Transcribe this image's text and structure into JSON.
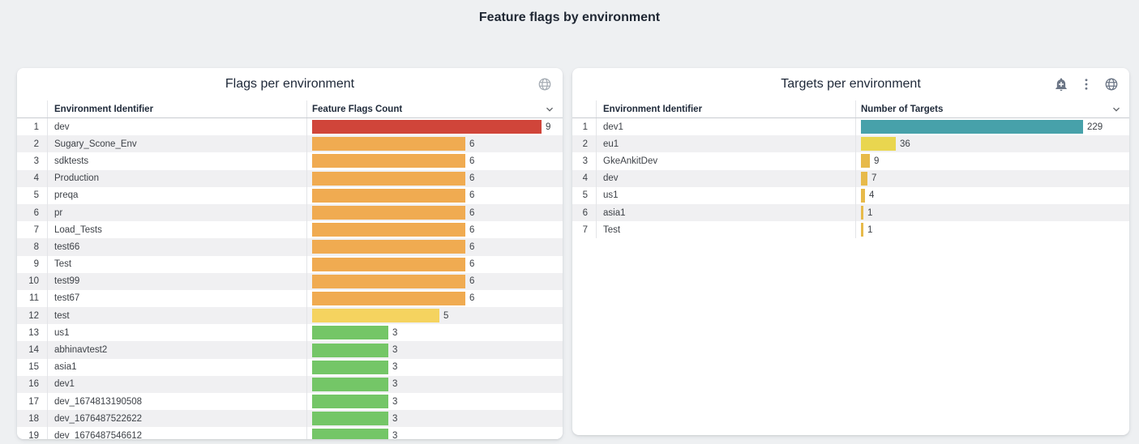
{
  "page_title": "Feature flags by environment",
  "colors": {
    "page_background": "#eef0f2",
    "panel_background": "#ffffff",
    "row_stripe": "#f0f0f2",
    "bar_red": "#d0453a",
    "bar_orange": "#f0ab51",
    "bar_yellow": "#f5d35f",
    "bar_green": "#74c667",
    "bar_teal": "#47a1aa",
    "bar_bright_yellow": "#e9d64f",
    "bar_amber": "#e7ba4a"
  },
  "panels": [
    {
      "title": "Flags per environment",
      "columns": [
        "Environment Identifier",
        "Feature Flags Count"
      ],
      "header_icons": [
        "globe-icon"
      ],
      "rows": [
        {
          "n": 1,
          "id": "dev",
          "value": 9,
          "color": "#d0453a"
        },
        {
          "n": 2,
          "id": "Sugary_Scone_Env",
          "value": 6,
          "color": "#f0ab51"
        },
        {
          "n": 3,
          "id": "sdktests",
          "value": 6,
          "color": "#f0ab51"
        },
        {
          "n": 4,
          "id": "Production",
          "value": 6,
          "color": "#f0ab51"
        },
        {
          "n": 5,
          "id": "preqa",
          "value": 6,
          "color": "#f0ab51"
        },
        {
          "n": 6,
          "id": "pr",
          "value": 6,
          "color": "#f0ab51"
        },
        {
          "n": 7,
          "id": "Load_Tests",
          "value": 6,
          "color": "#f0ab51"
        },
        {
          "n": 8,
          "id": "test66",
          "value": 6,
          "color": "#f0ab51"
        },
        {
          "n": 9,
          "id": "Test",
          "value": 6,
          "color": "#f0ab51"
        },
        {
          "n": 10,
          "id": "test99",
          "value": 6,
          "color": "#f0ab51"
        },
        {
          "n": 11,
          "id": "test67",
          "value": 6,
          "color": "#f0ab51"
        },
        {
          "n": 12,
          "id": "test",
          "value": 5,
          "color": "#f5d35f"
        },
        {
          "n": 13,
          "id": "us1",
          "value": 3,
          "color": "#74c667"
        },
        {
          "n": 14,
          "id": "abhinavtest2",
          "value": 3,
          "color": "#74c667"
        },
        {
          "n": 15,
          "id": "asia1",
          "value": 3,
          "color": "#74c667"
        },
        {
          "n": 16,
          "id": "dev1",
          "value": 3,
          "color": "#74c667"
        },
        {
          "n": 17,
          "id": "dev_1674813190508",
          "value": 3,
          "color": "#74c667"
        },
        {
          "n": 18,
          "id": "dev_1676487522622",
          "value": 3,
          "color": "#74c667"
        },
        {
          "n": 19,
          "id": "dev_1676487546612",
          "value": 3,
          "color": "#74c667"
        }
      ]
    },
    {
      "title": "Targets per environment",
      "columns": [
        "Environment Identifier",
        "Number of Targets"
      ],
      "header_icons": [
        "add-alert-icon",
        "more-vert-icon",
        "globe-icon"
      ],
      "rows": [
        {
          "n": 1,
          "id": "dev1",
          "value": 229,
          "color": "#47a1aa"
        },
        {
          "n": 2,
          "id": "eu1",
          "value": 36,
          "color": "#e9d64f"
        },
        {
          "n": 3,
          "id": "GkeAnkitDev",
          "value": 9,
          "color": "#e7ba4a"
        },
        {
          "n": 4,
          "id": "dev",
          "value": 7,
          "color": "#e7ba4a"
        },
        {
          "n": 5,
          "id": "us1",
          "value": 4,
          "color": "#e7ba4a"
        },
        {
          "n": 6,
          "id": "asia1",
          "value": 1,
          "color": "#e7ba4a"
        },
        {
          "n": 7,
          "id": "Test",
          "value": 1,
          "color": "#e7ba4a"
        }
      ]
    }
  ],
  "chart_data": [
    {
      "type": "bar",
      "orientation": "horizontal",
      "title": "Flags per environment",
      "xlabel": "Feature Flags Count",
      "ylabel": "Environment Identifier",
      "xlim": [
        0,
        9
      ],
      "categories": [
        "dev",
        "Sugary_Scone_Env",
        "sdktests",
        "Production",
        "preqa",
        "pr",
        "Load_Tests",
        "test66",
        "Test",
        "test99",
        "test67",
        "test",
        "us1",
        "abhinavtest2",
        "asia1",
        "dev1",
        "dev_1674813190508",
        "dev_1676487522622",
        "dev_1676487546612"
      ],
      "values": [
        9,
        6,
        6,
        6,
        6,
        6,
        6,
        6,
        6,
        6,
        6,
        5,
        3,
        3,
        3,
        3,
        3,
        3,
        3
      ],
      "bar_colors": [
        "#d0453a",
        "#f0ab51",
        "#f0ab51",
        "#f0ab51",
        "#f0ab51",
        "#f0ab51",
        "#f0ab51",
        "#f0ab51",
        "#f0ab51",
        "#f0ab51",
        "#f0ab51",
        "#f5d35f",
        "#74c667",
        "#74c667",
        "#74c667",
        "#74c667",
        "#74c667",
        "#74c667",
        "#74c667"
      ],
      "grid": false,
      "legend": false
    },
    {
      "type": "bar",
      "orientation": "horizontal",
      "title": "Targets per environment",
      "xlabel": "Number of Targets",
      "ylabel": "Environment Identifier",
      "xlim": [
        0,
        229
      ],
      "categories": [
        "dev1",
        "eu1",
        "GkeAnkitDev",
        "dev",
        "us1",
        "asia1",
        "Test"
      ],
      "values": [
        229,
        36,
        9,
        7,
        4,
        1,
        1
      ],
      "bar_colors": [
        "#47a1aa",
        "#e9d64f",
        "#e7ba4a",
        "#e7ba4a",
        "#e7ba4a",
        "#e7ba4a",
        "#e7ba4a"
      ],
      "grid": false,
      "legend": false
    }
  ]
}
